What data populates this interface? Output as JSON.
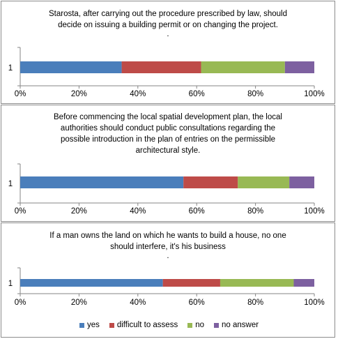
{
  "chart_data": [
    {
      "type": "bar",
      "orientation": "horizontal",
      "stacked": true,
      "title": [
        "Starosta, after carrying out the procedure prescribed by law, should",
        "decide on issuing a building permit or on changing the project."
      ],
      "dot": ".",
      "categories": [
        "1"
      ],
      "series": [
        {
          "name": "yes",
          "values": [
            34.5
          ]
        },
        {
          "name": "difficult to assess",
          "values": [
            27.0
          ]
        },
        {
          "name": "no",
          "values": [
            28.5
          ]
        },
        {
          "name": "no answer",
          "values": [
            10.0
          ]
        }
      ],
      "xlim": [
        0,
        100
      ],
      "xticks": [
        "0%",
        "20%",
        "40%",
        "60%",
        "80%",
        "100%"
      ]
    },
    {
      "type": "bar",
      "orientation": "horizontal",
      "stacked": true,
      "title": [
        "Before commencing the local spatial development plan, the local",
        "authorities should conduct public consultations regarding the",
        "possible introduction in the plan of entries on the permissible",
        "architectural style."
      ],
      "dot": "",
      "categories": [
        "1"
      ],
      "series": [
        {
          "name": "yes",
          "values": [
            55.5
          ]
        },
        {
          "name": "difficult to assess",
          "values": [
            18.5
          ]
        },
        {
          "name": "no",
          "values": [
            17.5
          ]
        },
        {
          "name": "no answer",
          "values": [
            8.5
          ]
        }
      ],
      "xlim": [
        0,
        100
      ],
      "xticks": [
        "0%",
        "20%",
        "40%",
        "60%",
        "80%",
        "100%"
      ]
    },
    {
      "type": "bar",
      "orientation": "horizontal",
      "stacked": true,
      "title": [
        "If a man owns the land on which he wants to build a house, no one",
        "should interfere, it's his business"
      ],
      "dot": ".",
      "categories": [
        "1"
      ],
      "series": [
        {
          "name": "yes",
          "values": [
            48.5
          ]
        },
        {
          "name": "difficult to assess",
          "values": [
            19.5
          ]
        },
        {
          "name": "no",
          "values": [
            25.0
          ]
        },
        {
          "name": "no answer",
          "values": [
            7.0
          ]
        }
      ],
      "xlim": [
        0,
        100
      ],
      "xticks": [
        "0%",
        "20%",
        "40%",
        "60%",
        "80%",
        "100%"
      ]
    }
  ],
  "legend": {
    "placement": "bottom",
    "items": [
      {
        "label": "yes",
        "color": "#4a7ebb"
      },
      {
        "label": "difficult to assess",
        "color": "#be4b48"
      },
      {
        "label": "no",
        "color": "#98b954"
      },
      {
        "label": "no answer",
        "color": "#7d60a0"
      }
    ]
  }
}
